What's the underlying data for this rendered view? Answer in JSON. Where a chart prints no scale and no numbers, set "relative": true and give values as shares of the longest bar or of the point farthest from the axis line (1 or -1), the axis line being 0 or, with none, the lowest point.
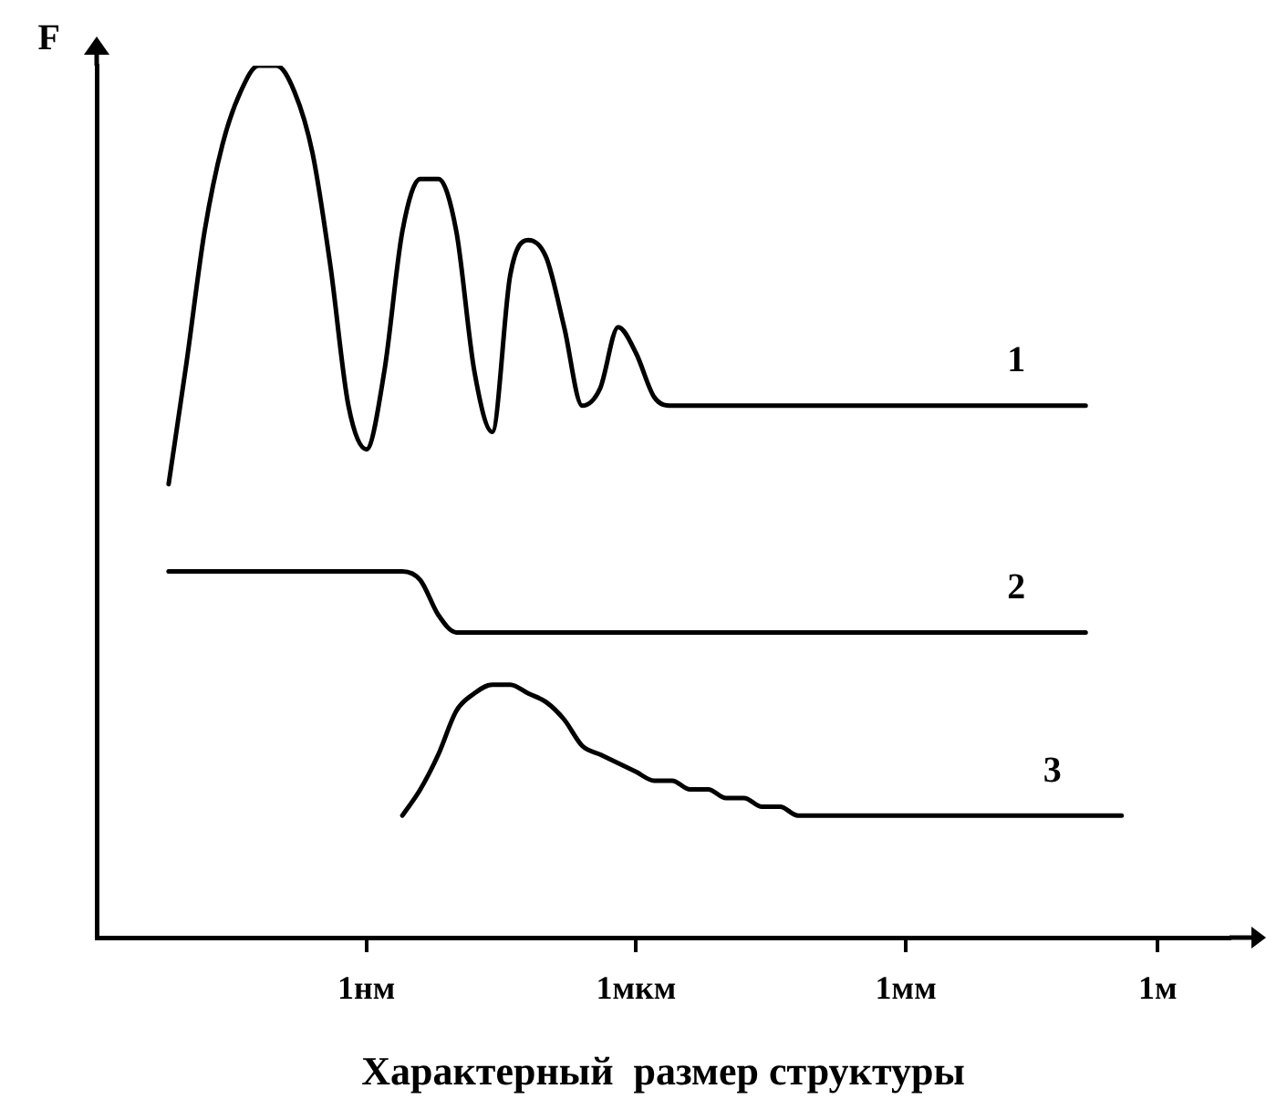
{
  "chart_data": {
    "type": "line",
    "relative": true,
    "ylabel": "F",
    "xlabel": "Характерный  размер структуры",
    "categories": [
      null,
      null,
      null,
      null,
      null,
      null,
      null,
      null,
      null,
      null,
      null,
      null,
      null,
      null,
      null,
      "1нм",
      null,
      null,
      null,
      null,
      null,
      null,
      null,
      null,
      null,
      null,
      null,
      null,
      null,
      null,
      "1мкм",
      null,
      null,
      null,
      null,
      null,
      null,
      null,
      null,
      null,
      null,
      null,
      null,
      null,
      null,
      "1мм",
      null,
      null,
      null,
      null,
      null,
      null,
      null,
      null,
      null,
      null,
      null,
      null,
      null,
      "1м",
      null,
      null,
      null,
      null
    ],
    "grid": false,
    "legend": false,
    "marker": "none",
    "line_style": "solid",
    "series": [
      {
        "name": "1",
        "color": "#000000",
        "values": [
          null,
          null,
          null,
          null,
          0.52,
          0.66,
          0.81,
          0.91,
          0.97,
          1.0,
          1.0,
          0.97,
          0.9,
          0.77,
          0.61,
          0.56,
          0.65,
          0.81,
          0.87,
          0.87,
          0.81,
          0.65,
          0.58,
          0.76,
          0.8,
          0.78,
          0.7,
          0.61,
          0.63,
          0.7,
          0.67,
          0.62,
          0.61,
          0.61,
          0.61,
          0.61,
          0.61,
          0.61,
          0.61,
          0.61,
          0.61,
          0.61,
          0.61,
          0.61,
          0.61,
          0.61,
          0.61,
          0.61,
          0.61,
          0.61,
          0.61,
          0.61,
          0.61,
          0.61,
          0.61,
          0.61,
          null,
          null,
          null,
          null,
          null,
          null,
          null,
          null
        ]
      },
      {
        "name": "2",
        "color": "#000000",
        "values": [
          null,
          null,
          null,
          null,
          0.42,
          0.42,
          0.42,
          0.42,
          0.42,
          0.42,
          0.42,
          0.42,
          0.42,
          0.42,
          0.42,
          0.42,
          0.42,
          0.42,
          0.41,
          0.37,
          0.35,
          0.35,
          0.35,
          0.35,
          0.35,
          0.35,
          0.35,
          0.35,
          0.35,
          0.35,
          0.35,
          0.35,
          0.35,
          0.35,
          0.35,
          0.35,
          0.35,
          0.35,
          0.35,
          0.35,
          0.35,
          0.35,
          0.35,
          0.35,
          0.35,
          0.35,
          0.35,
          0.35,
          0.35,
          0.35,
          0.35,
          0.35,
          0.35,
          0.35,
          0.35,
          0.35,
          null,
          null,
          null,
          null,
          null,
          null,
          null,
          null
        ]
      },
      {
        "name": "3",
        "color": "#000000",
        "values": [
          null,
          null,
          null,
          null,
          null,
          null,
          null,
          null,
          null,
          null,
          null,
          null,
          null,
          null,
          null,
          null,
          null,
          0.14,
          0.17,
          0.21,
          0.26,
          0.28,
          0.29,
          0.29,
          0.28,
          0.27,
          0.25,
          0.22,
          0.21,
          0.2,
          0.19,
          0.18,
          0.18,
          0.17,
          0.17,
          0.16,
          0.16,
          0.15,
          0.15,
          0.14,
          0.14,
          0.14,
          0.14,
          0.14,
          0.14,
          0.14,
          0.14,
          0.14,
          0.14,
          0.14,
          0.14,
          0.14,
          0.14,
          0.14,
          0.14,
          0.14,
          0.14,
          0.14,
          null,
          null,
          null,
          null,
          null,
          null
        ]
      }
    ]
  }
}
